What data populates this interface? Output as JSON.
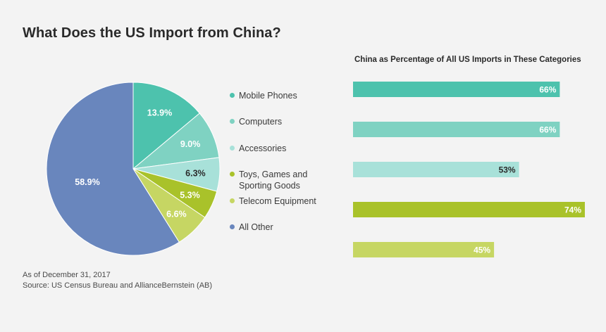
{
  "title": "What Does the US Import from China?",
  "footnote": {
    "date": "As of December 31, 2017",
    "source": "Source: US Census Bureau and AllianceBernstein (AB)"
  },
  "chart_data": [
    {
      "type": "pie",
      "title": "",
      "slices": [
        {
          "label": "Mobile Phones",
          "value": 13.9,
          "display": "13.9%",
          "color": "#4dc2ad",
          "label_color": "#ffffff"
        },
        {
          "label": "Computers",
          "value": 9.0,
          "display": "9.0%",
          "color": "#7fd2c2",
          "label_color": "#ffffff"
        },
        {
          "label": "Accessories",
          "value": 6.3,
          "display": "6.3%",
          "color": "#a8e1d9",
          "label_color": "#2b2b2b"
        },
        {
          "label": "Toys, Games and Sporting Goods",
          "value": 5.3,
          "display": "5.3%",
          "color": "#a9c22a",
          "label_color": "#ffffff"
        },
        {
          "label": "Telecom Equipment",
          "value": 6.6,
          "display": "6.6%",
          "color": "#c6d663",
          "label_color": "#ffffff"
        },
        {
          "label": "All Other",
          "value": 58.9,
          "display": "58.9%",
          "color": "#6986bd",
          "label_color": "#ffffff"
        }
      ],
      "legend_lines": [
        [
          "Mobile Phones"
        ],
        [
          "Computers"
        ],
        [
          "Accessories"
        ],
        [
          "Toys, Games and",
          "Sporting Goods"
        ],
        [
          "Telecom Equipment"
        ],
        [
          "All Other"
        ]
      ],
      "legend_placement": "right"
    },
    {
      "type": "bar",
      "orientation": "horizontal",
      "title": "China as Percentage of All US Imports in These Categories",
      "categories": [
        "Mobile Phones",
        "Computers",
        "Accessories",
        "Toys, Games and Sporting Goods",
        "Telecom Equipment"
      ],
      "values": [
        66,
        66,
        53,
        74,
        45
      ],
      "value_labels": [
        "66%",
        "66%",
        "53%",
        "74%",
        "45%"
      ],
      "colors": [
        "#4dc2ad",
        "#7fd2c2",
        "#a8e1d9",
        "#a9c22a",
        "#c6d663"
      ],
      "label_colors": [
        "#ffffff",
        "#ffffff",
        "#2b2b2b",
        "#ffffff",
        "#ffffff"
      ],
      "xlim": [
        0,
        74
      ]
    }
  ]
}
